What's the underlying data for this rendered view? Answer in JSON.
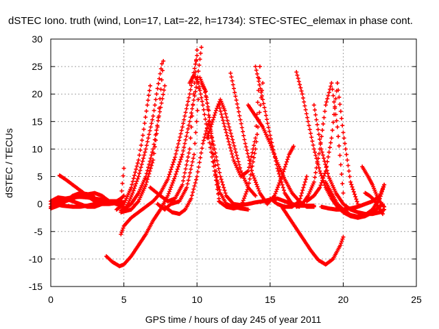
{
  "chart_data": {
    "type": "scatter",
    "title": "dSTEC Iono. truth (wind, Lon=17, Lat=-22, h=1734): STEC-STEC_elemax in phase cont.",
    "xlabel": "GPS time / hours of day 245 of year 2011",
    "ylabel": "dSTEC  / TECUs",
    "xlim": [
      0,
      25
    ],
    "ylim": [
      -15,
      30
    ],
    "xticks": [
      "0",
      "5",
      "10",
      "15",
      "20",
      "25"
    ],
    "yticks": [
      "-15",
      "-10",
      "-5",
      "0",
      "5",
      "10",
      "15",
      "20",
      "25",
      "30"
    ],
    "grid": true,
    "marker": "plus",
    "color": "#ff0000",
    "series": [
      {
        "x": [
          0.0,
          0.5,
          1.0,
          1.5,
          2.0,
          2.5,
          3.0,
          3.5,
          4.0,
          4.5,
          4.8,
          5.0
        ],
        "values": [
          0.5,
          1.2,
          1.0,
          0.5,
          0.0,
          -0.5,
          -0.5,
          0.0,
          0.5,
          0.5,
          1.0,
          1.5
        ]
      },
      {
        "x": [
          0.2,
          0.8,
          1.5,
          2.0,
          2.5,
          3.0,
          3.5,
          4.0,
          4.5,
          5.0
        ],
        "values": [
          0.0,
          -0.3,
          -0.5,
          -0.5,
          -0.3,
          0.0,
          0.3,
          0.5,
          0.5,
          0.3
        ]
      },
      {
        "x": [
          0.6,
          1.0,
          1.5,
          2.0,
          2.5,
          3.0,
          3.5,
          4.0,
          4.5,
          5.0
        ],
        "values": [
          5.2,
          4.5,
          3.5,
          2.5,
          1.5,
          0.5,
          0.0,
          0.0,
          0.2,
          1.5
        ]
      },
      {
        "x": [
          0.0,
          1.0,
          2.0,
          3.0,
          3.5,
          4.0,
          4.5,
          4.8,
          5.0
        ],
        "values": [
          -0.5,
          0.5,
          1.5,
          2.0,
          1.5,
          0.5,
          0.0,
          1.0,
          6.5
        ]
      },
      {
        "x": [
          0.0,
          0.5,
          1.0,
          1.5,
          2.0,
          2.5,
          3.0,
          3.5,
          4.0,
          4.5,
          5.0
        ],
        "values": [
          0.0,
          0.5,
          1.0,
          1.2,
          1.3,
          1.2,
          1.0,
          0.8,
          0.5,
          0.0,
          -0.5
        ]
      },
      {
        "x": [
          4.5,
          5.0,
          5.5,
          6.0,
          6.3,
          6.6,
          6.8
        ],
        "values": [
          -1.0,
          0.0,
          3.0,
          8.0,
          12.5,
          18.0,
          21.5
        ]
      },
      {
        "x": [
          4.8,
          5.2,
          5.6,
          6.0,
          6.5,
          7.0,
          7.3,
          7.6
        ],
        "values": [
          -1.2,
          -0.5,
          2.0,
          5.0,
          10.0,
          16.0,
          21.0,
          25.5
        ]
      },
      {
        "x": [
          5.0,
          5.5,
          6.0,
          6.5,
          7.0,
          7.4,
          7.8
        ],
        "values": [
          -1.0,
          0.0,
          2.0,
          5.0,
          10.0,
          16.0,
          21.5
        ]
      },
      {
        "x": [
          4.8,
          5.5,
          6.0,
          6.5,
          7.0,
          7.3,
          7.7
        ],
        "values": [
          -1.5,
          -1.0,
          0.5,
          3.5,
          8.0,
          14.0,
          26.0
        ]
      },
      {
        "x": [
          4.8,
          5.0,
          5.5,
          6.0,
          6.5,
          7.0,
          7.5,
          8.0,
          8.5,
          9.0,
          9.5,
          10.0
        ],
        "values": [
          -5.5,
          -4.0,
          -2.5,
          -1.5,
          -0.5,
          0.5,
          2.0,
          4.5,
          8.5,
          14.0,
          20.0,
          27.0
        ]
      },
      {
        "x": [
          3.8,
          4.2,
          4.7,
          5.0,
          5.5,
          6.0,
          6.5,
          7.0,
          7.5,
          8.0,
          8.5,
          9.0,
          9.5,
          10.0,
          10.3
        ],
        "values": [
          -9.5,
          -10.5,
          -11.3,
          -11.0,
          -9.5,
          -7.5,
          -5.5,
          -3.0,
          -1.0,
          1.5,
          5.0,
          9.0,
          15.0,
          22.0,
          28.5
        ]
      },
      {
        "x": [
          6.8,
          7.5,
          8.0,
          8.5,
          9.0,
          9.5,
          10.0
        ],
        "values": [
          3.0,
          1.5,
          0.5,
          1.0,
          3.5,
          10.0,
          28.0
        ]
      },
      {
        "x": [
          7.3,
          7.8,
          8.2,
          8.8,
          9.3,
          9.8,
          10.2,
          10.5,
          10.8,
          11.0,
          11.3,
          11.5
        ],
        "values": [
          0.0,
          -1.0,
          0.0,
          0.5,
          3.0,
          9.0,
          23.0,
          21.0,
          17.0,
          12.0,
          6.0,
          2.0
        ]
      },
      {
        "x": [
          7.8,
          8.3,
          8.8,
          9.2,
          9.6,
          10.0,
          10.4,
          10.8,
          11.2,
          11.6,
          12.0,
          12.5
        ],
        "values": [
          -0.5,
          -1.5,
          -1.8,
          -1.0,
          1.0,
          5.0,
          11.0,
          15.0,
          10.0,
          5.0,
          1.5,
          0.0
        ]
      },
      {
        "x": [
          9.5,
          9.8,
          10.1,
          10.4,
          10.8,
          11.2,
          11.6,
          12.0,
          12.5,
          13.0,
          13.5
        ],
        "values": [
          22.0,
          23.5,
          22.0,
          18.0,
          12.0,
          6.0,
          2.0,
          0.0,
          -0.5,
          -0.8,
          -1.0
        ]
      },
      {
        "x": [
          10.3,
          10.6,
          10.9,
          11.2,
          11.5
        ],
        "values": [
          22.0,
          20.5,
          14.0,
          6.0,
          1.0
        ]
      },
      {
        "x": [
          10.7,
          11.0,
          11.3,
          11.6,
          11.9,
          12.2,
          12.6,
          13.0,
          13.5,
          14.0
        ],
        "values": [
          12.0,
          14.5,
          17.0,
          19.0,
          17.0,
          14.0,
          10.0,
          6.0,
          3.0,
          1.5
        ]
      },
      {
        "x": [
          11.5,
          12.0,
          12.5,
          13.0,
          13.5,
          14.0,
          14.3
        ],
        "values": [
          18.0,
          13.0,
          8.0,
          5.0,
          6.0,
          12.0,
          25.0
        ]
      },
      {
        "x": [
          12.3,
          12.8,
          13.3,
          13.8,
          14.3,
          14.8,
          15.3,
          15.8,
          16.3,
          16.6
        ],
        "values": [
          23.8,
          17.5,
          11.0,
          5.5,
          2.0,
          0.0,
          1.5,
          5.0,
          9.0,
          10.5
        ]
      },
      {
        "x": [
          12.5,
          13.0,
          13.5,
          14.0,
          14.5,
          15.0,
          15.5,
          16.0,
          16.5,
          17.0
        ],
        "values": [
          0.0,
          -0.2,
          0.0,
          0.3,
          0.5,
          0.8,
          1.0,
          0.5,
          0.0,
          -0.5
        ]
      },
      {
        "x": [
          11.5,
          12.0,
          12.5,
          13.0,
          13.5,
          14.0,
          14.5
        ],
        "values": [
          0.5,
          -0.5,
          -0.8,
          -0.5,
          3.0,
          10.0,
          22.0
        ]
      },
      {
        "x": [
          13.5,
          14.0,
          14.5,
          15.0,
          15.5,
          16.0,
          16.5,
          17.0,
          17.5,
          18.0
        ],
        "values": [
          18.0,
          16.0,
          14.0,
          11.0,
          7.5,
          4.5,
          2.0,
          0.5,
          -0.5,
          -0.5
        ]
      },
      {
        "x": [
          14.0,
          14.5,
          15.0,
          15.5,
          16.0,
          16.5,
          17.0,
          17.5,
          18.0
        ],
        "values": [
          25.0,
          19.0,
          12.5,
          6.5,
          2.0,
          0.0,
          -0.3,
          -0.3,
          -0.3
        ]
      },
      {
        "x": [
          15.0,
          15.5,
          16.0,
          16.5,
          17.0,
          17.5
        ],
        "values": [
          1.0,
          0.0,
          -0.5,
          -0.5,
          0.5,
          5.0
        ]
      },
      {
        "x": [
          16.8,
          17.2,
          17.6,
          18.0,
          18.4,
          18.8,
          19.2,
          19.6,
          20.0
        ],
        "values": [
          -0.5,
          0.0,
          1.5,
          4.0,
          10.0,
          18.0,
          22.0,
          14.0,
          2.0
        ]
      },
      {
        "x": [
          17.5,
          18.0,
          18.4,
          18.8,
          19.2,
          19.6,
          20.0,
          20.5,
          21.0
        ],
        "values": [
          0.5,
          1.5,
          3.0,
          6.0,
          12.0,
          22.0,
          13.0,
          4.0,
          0.0
        ]
      },
      {
        "x": [
          15.8,
          16.3,
          16.8,
          17.3,
          17.8,
          18.3,
          18.8,
          19.3,
          19.8,
          20.0
        ],
        "values": [
          -0.5,
          -2.5,
          -4.5,
          -6.5,
          -8.5,
          -10.2,
          -11.0,
          -10.0,
          -7.5,
          -6.0
        ]
      },
      {
        "x": [
          16.8,
          17.2,
          17.6,
          18.0,
          18.4,
          18.8,
          19.2,
          19.6,
          20.0,
          20.5,
          21.0,
          21.5,
          22.0,
          22.5,
          22.7
        ],
        "values": [
          24.0,
          20.0,
          15.0,
          10.0,
          6.0,
          3.0,
          1.0,
          -0.5,
          -1.5,
          -2.2,
          -2.5,
          -2.2,
          -1.5,
          -0.5,
          0.0
        ]
      },
      {
        "x": [
          18.0,
          18.5,
          19.0,
          19.5,
          20.0,
          20.5,
          21.0,
          21.5,
          22.0,
          22.5,
          22.8
        ],
        "values": [
          18.0,
          10.0,
          5.0,
          2.0,
          0.0,
          -1.0,
          -1.5,
          -1.8,
          -1.8,
          -1.5,
          -1.0
        ]
      },
      {
        "x": [
          18.8,
          19.2,
          19.6,
          20.0,
          20.5,
          21.0,
          21.5,
          22.0,
          22.5,
          22.8
        ],
        "values": [
          4.0,
          2.0,
          0.0,
          -1.0,
          -2.0,
          -2.3,
          -2.0,
          -1.0,
          1.0,
          3.5
        ]
      },
      {
        "x": [
          18.5,
          19.0,
          19.5,
          20.0,
          20.5,
          21.0,
          21.5,
          22.0,
          22.5,
          22.8
        ],
        "values": [
          -0.5,
          -0.8,
          -1.0,
          -1.0,
          -0.8,
          -0.5,
          0.0,
          0.5,
          1.5,
          3.5
        ]
      },
      {
        "x": [
          21.3,
          21.7,
          22.0,
          22.3,
          22.6,
          22.8
        ],
        "values": [
          6.8,
          5.0,
          3.5,
          1.5,
          0.0,
          -0.5
        ]
      },
      {
        "x": [
          21.5,
          21.8,
          22.1,
          22.4,
          22.7
        ],
        "values": [
          2.0,
          1.5,
          0.8,
          -0.5,
          -1.8
        ]
      },
      {
        "x": [
          0.0,
          0.5,
          1.0,
          1.5,
          2.0,
          2.5,
          3.0
        ],
        "values": [
          -0.8,
          -0.3,
          0.5,
          1.5,
          2.0,
          1.8,
          1.2
        ]
      }
    ]
  }
}
